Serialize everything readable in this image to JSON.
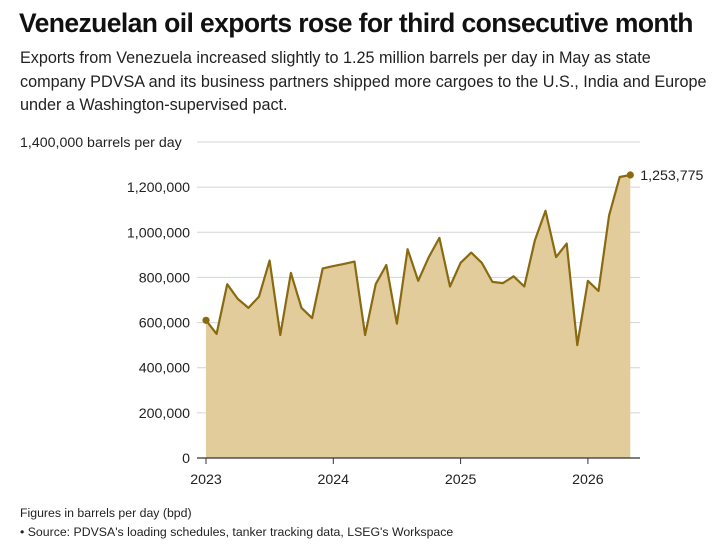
{
  "header": {
    "title": "Venezuelan oil exports rose for third consecutive month",
    "subtitle": "Exports from Venezuela increased slightly to 1.25 million barrels per day in May as state company PDVSA and its business partners shipped more cargoes to the U.S., India and Europe under a Washington-supervised pact."
  },
  "footer": {
    "note": "Figures in barrels per day (bpd)",
    "source": "• Source: PDVSA's loading schedules, tanker tracking data, LSEG's Workspace"
  },
  "colors": {
    "line": "#8a6a10",
    "area": "#e2cc9c",
    "grid": "#d4d4d4",
    "axis": "#333333"
  },
  "chart_data": {
    "type": "area",
    "ylabel": "1,400,000 barrels per day",
    "ylim": [
      0,
      1400000
    ],
    "y_ticks": [
      0,
      200000,
      400000,
      600000,
      800000,
      1000000,
      1200000
    ],
    "y_tick_labels": [
      "0",
      "200,000",
      "400,000",
      "600,000",
      "800,000",
      "1,000,000",
      "1,200,000"
    ],
    "x_ticks": [
      "2023",
      "2024",
      "2025",
      "2026"
    ],
    "grid": true,
    "legend": "none",
    "annotation": "1,253,775",
    "series": [
      {
        "x": [
          "2023-01",
          "2023-02",
          "2023-03",
          "2023-04",
          "2023-05",
          "2023-06",
          "2023-07",
          "2023-08",
          "2023-09",
          "2023-10",
          "2023-11",
          "2023-12",
          "2024-01",
          "2024-02",
          "2024-03",
          "2024-04",
          "2024-05",
          "2024-06",
          "2024-07",
          "2024-08",
          "2024-09",
          "2024-10",
          "2024-11",
          "2024-12",
          "2025-01",
          "2025-02",
          "2025-03",
          "2025-04",
          "2025-05",
          "2025-06",
          "2025-07",
          "2025-08",
          "2025-09",
          "2025-10",
          "2025-11",
          "2025-12",
          "2026-01",
          "2026-02",
          "2026-03",
          "2026-04",
          "2026-05"
        ],
        "values": [
          610000,
          550000,
          770000,
          705000,
          665000,
          715000,
          875000,
          545000,
          820000,
          665000,
          620000,
          840000,
          850000,
          860000,
          870000,
          545000,
          770000,
          855000,
          595000,
          925000,
          785000,
          890000,
          975000,
          760000,
          865000,
          910000,
          865000,
          780000,
          775000,
          805000,
          760000,
          965000,
          1095000,
          890000,
          950000,
          500000,
          785000,
          740000,
          1075000,
          1245000,
          1253775
        ]
      }
    ]
  }
}
